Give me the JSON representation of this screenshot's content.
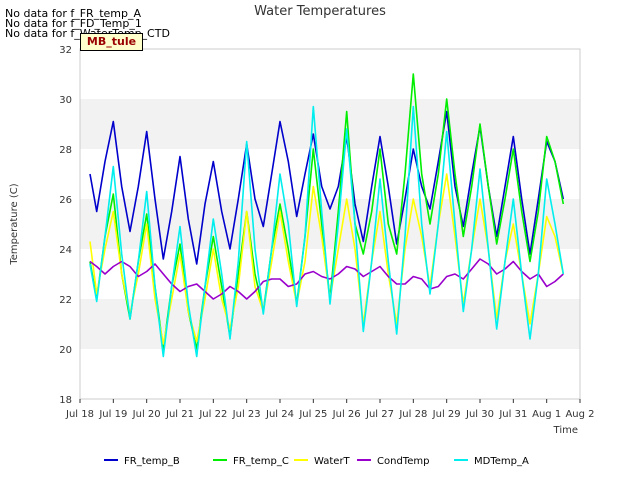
{
  "notes": [
    "No data for f_FR_temp_A",
    "No data for f_FD_Temp_1",
    "No data for f_WaterTemp_CTD"
  ],
  "badge": "MB_tule",
  "chart_data": {
    "type": "line",
    "title": "Water Temperatures",
    "xlabel": "Time",
    "ylabel": "Temperature (C)",
    "ylim": [
      18,
      32
    ],
    "yticks": [
      18,
      20,
      22,
      24,
      26,
      28,
      30,
      32
    ],
    "xlim": [
      0,
      15
    ],
    "xtick_labels": [
      "Jul 18",
      "Jul 19",
      "Jul 20",
      "Jul 21",
      "Jul 22",
      "Jul 23",
      "Jul 24",
      "Jul 25",
      "Jul 26",
      "Jul 27",
      "Jul 28",
      "Jul 29",
      "Jul 30",
      "Jul 31",
      "Aug 1",
      "Aug 2"
    ],
    "grid": "horizontal bands",
    "legend": "bottom",
    "x": [
      0.3,
      0.5,
      0.75,
      1.0,
      1.25,
      1.5,
      1.75,
      2.0,
      2.25,
      2.5,
      2.75,
      3.0,
      3.25,
      3.5,
      3.75,
      4.0,
      4.25,
      4.5,
      4.75,
      5.0,
      5.25,
      5.5,
      5.75,
      6.0,
      6.25,
      6.5,
      6.75,
      7.0,
      7.25,
      7.5,
      7.75,
      8.0,
      8.25,
      8.5,
      8.75,
      9.0,
      9.25,
      9.5,
      9.75,
      10.0,
      10.25,
      10.5,
      10.75,
      11.0,
      11.25,
      11.5,
      11.75,
      12.0,
      12.25,
      12.5,
      12.75,
      13.0,
      13.25,
      13.5,
      13.75,
      14.0,
      14.25,
      14.5
    ],
    "series": [
      {
        "name": "FR_temp_B",
        "color": "#0000cc",
        "values": [
          27.0,
          25.5,
          27.5,
          29.1,
          26.5,
          24.7,
          26.5,
          28.7,
          26.0,
          23.6,
          25.5,
          27.7,
          25.2,
          23.4,
          25.8,
          27.5,
          25.5,
          24.0,
          26.0,
          28.2,
          26.0,
          24.9,
          27.0,
          29.1,
          27.5,
          25.3,
          27.0,
          28.6,
          26.5,
          25.6,
          26.5,
          28.5,
          25.8,
          24.3,
          26.5,
          28.5,
          26.5,
          24.2,
          26.0,
          28.0,
          26.5,
          25.6,
          27.5,
          29.5,
          26.5,
          24.9,
          27.0,
          28.9,
          26.5,
          24.5,
          26.5,
          28.5,
          26.0,
          23.8,
          26.0,
          28.3,
          27.5,
          26.0
        ]
      },
      {
        "name": "FR_temp_C",
        "color": "#00ee00",
        "values": [
          23.5,
          22.0,
          24.5,
          26.2,
          23.0,
          21.2,
          23.5,
          25.4,
          22.5,
          20.0,
          22.5,
          24.2,
          21.5,
          20.0,
          22.5,
          24.5,
          22.5,
          20.5,
          23.0,
          25.5,
          23.0,
          21.5,
          24.0,
          25.8,
          24.0,
          21.8,
          24.5,
          28.0,
          25.0,
          22.0,
          25.5,
          29.5,
          25.0,
          23.8,
          25.5,
          28.0,
          25.0,
          23.8,
          27.0,
          31.0,
          27.0,
          25.0,
          27.0,
          30.0,
          27.0,
          24.5,
          26.5,
          29.0,
          26.5,
          24.2,
          26.0,
          28.0,
          25.5,
          23.5,
          25.5,
          28.5,
          27.5,
          25.8
        ]
      },
      {
        "name": "WaterT",
        "color": "#ffff00",
        "values": [
          24.3,
          22.2,
          24.0,
          25.5,
          23.0,
          21.4,
          23.0,
          25.0,
          22.0,
          20.2,
          22.0,
          23.8,
          21.5,
          20.3,
          22.0,
          24.0,
          22.0,
          20.8,
          22.5,
          25.5,
          22.5,
          21.5,
          23.5,
          25.5,
          23.5,
          21.8,
          23.5,
          26.5,
          24.5,
          22.0,
          24.0,
          26.0,
          24.0,
          21.0,
          23.5,
          25.5,
          23.0,
          21.0,
          24.0,
          26.0,
          24.5,
          22.5,
          25.0,
          27.0,
          24.5,
          21.8,
          24.0,
          26.0,
          24.0,
          21.2,
          23.5,
          25.0,
          23.0,
          21.0,
          23.0,
          25.3,
          24.5,
          23.0
        ]
      },
      {
        "name": "CondTemp",
        "color": "#9900cc",
        "values": [
          23.5,
          23.3,
          23.0,
          23.3,
          23.5,
          23.3,
          22.9,
          23.1,
          23.4,
          23.0,
          22.6,
          22.3,
          22.5,
          22.6,
          22.3,
          22.0,
          22.2,
          22.5,
          22.3,
          22.0,
          22.3,
          22.7,
          22.8,
          22.8,
          22.5,
          22.6,
          23.0,
          23.1,
          22.9,
          22.8,
          23.0,
          23.3,
          23.2,
          22.9,
          23.1,
          23.3,
          22.9,
          22.6,
          22.6,
          22.9,
          22.8,
          22.4,
          22.5,
          22.9,
          23.0,
          22.8,
          23.2,
          23.6,
          23.4,
          23.0,
          23.2,
          23.5,
          23.1,
          22.8,
          23.0,
          22.5,
          22.7,
          23.0
        ]
      },
      {
        "name": "MDTemp_A",
        "color": "#00eeee",
        "values": [
          23.4,
          21.9,
          24.5,
          27.3,
          23.8,
          21.2,
          23.5,
          26.3,
          22.5,
          19.7,
          22.5,
          24.9,
          21.8,
          19.7,
          22.5,
          25.2,
          23.0,
          20.4,
          23.5,
          28.3,
          24.0,
          21.4,
          24.0,
          27.0,
          25.0,
          21.7,
          24.5,
          29.7,
          25.5,
          21.8,
          25.0,
          28.8,
          25.0,
          20.7,
          23.5,
          26.8,
          23.5,
          20.6,
          24.5,
          29.7,
          25.0,
          22.2,
          25.0,
          28.7,
          25.0,
          21.5,
          24.0,
          27.2,
          24.0,
          20.8,
          23.5,
          26.0,
          23.0,
          20.4,
          23.0,
          26.8,
          25.0,
          23.0
        ]
      }
    ]
  }
}
